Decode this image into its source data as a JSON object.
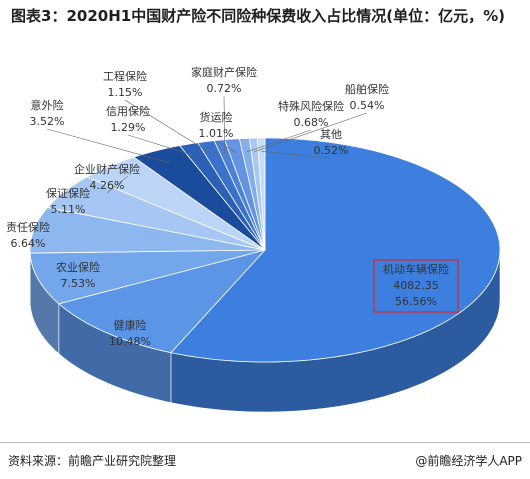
{
  "chart_data": {
    "type": "pie",
    "title": "图表3：2020H1中国财产险不同险种保费收入占比情况(单位：亿元，%)",
    "source": "资料来源：前瞻产业研究院整理",
    "credit": "@前瞻经济学人APP",
    "categories": [
      "机动车辆保险",
      "健康险",
      "农业保险",
      "责任保险",
      "保证保险",
      "企业财产保险",
      "意外险",
      "信用保险",
      "工程保险",
      "家庭财产保险",
      "货运险",
      "特殊风险保险",
      "船舶保险",
      "其他"
    ],
    "values": [
      56.56,
      10.48,
      7.53,
      6.64,
      5.11,
      4.26,
      3.52,
      1.29,
      1.15,
      0.72,
      1.01,
      0.68,
      0.54,
      0.52
    ],
    "value_labels": [
      "56.56%",
      "10.48%",
      "7.53%",
      "6.64%",
      "5.11%",
      "4.26%",
      "3.52%",
      "1.29%",
      "1.15%",
      "0.72%",
      "1.01%",
      "0.68%",
      "0.54%",
      "0.52%"
    ],
    "amounts": [
      4082.35,
      null,
      null,
      null,
      null,
      null,
      null,
      null,
      null,
      null,
      null,
      null,
      null,
      null
    ],
    "colors": [
      "#3d7fde",
      "#5a95e6",
      "#74a6eb",
      "#8db7ef",
      "#a6c7f3",
      "#bcd5f6",
      "#1b4c9c",
      "#2b60b6",
      "#3a71cb",
      "#4c82d6",
      "#6394e0",
      "#84aee8",
      "#a9c8f0",
      "#c6dbf5"
    ]
  }
}
